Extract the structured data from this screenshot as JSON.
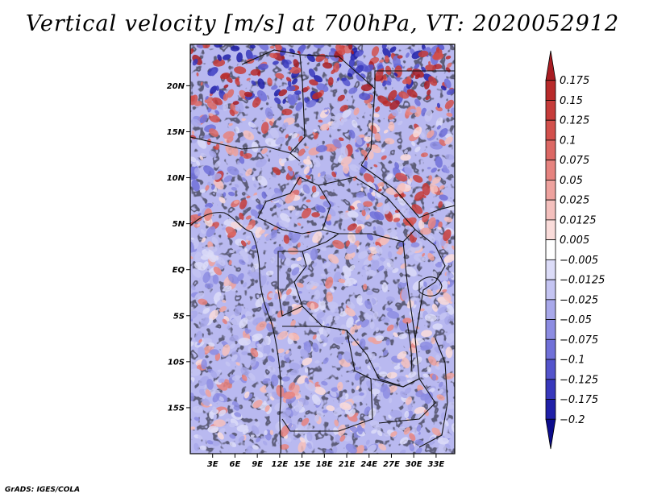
{
  "title": "Vertical velocity [m/s] at 700hPa, VT: 2020052912",
  "credit": "GrADS: IGES/COLA",
  "map": {
    "lon_range": [
      0,
      35.5
    ],
    "lat_range": [
      -20,
      24.5
    ],
    "lat_ticks": [
      {
        "value": 20,
        "label": "20N"
      },
      {
        "value": 15,
        "label": "15N"
      },
      {
        "value": 10,
        "label": "10N"
      },
      {
        "value": 5,
        "label": "5N"
      },
      {
        "value": 0,
        "label": "EQ"
      },
      {
        "value": -5,
        "label": "5S"
      },
      {
        "value": -10,
        "label": "10S"
      },
      {
        "value": -15,
        "label": "15S"
      }
    ],
    "lon_ticks": [
      {
        "value": 3,
        "label": "3E"
      },
      {
        "value": 6,
        "label": "6E"
      },
      {
        "value": 9,
        "label": "9E"
      },
      {
        "value": 12,
        "label": "12E"
      },
      {
        "value": 15,
        "label": "15E"
      },
      {
        "value": 18,
        "label": "18E"
      },
      {
        "value": 21,
        "label": "21E"
      },
      {
        "value": 24,
        "label": "24E"
      },
      {
        "value": 27,
        "label": "27E"
      },
      {
        "value": 30,
        "label": "30E"
      },
      {
        "value": 33,
        "label": "33E"
      }
    ]
  },
  "colorbar": {
    "labels": [
      "0.175",
      "0.15",
      "0.125",
      "0.1",
      "0.075",
      "0.05",
      "0.025",
      "0.0125",
      "0.005",
      "−0.005",
      "−0.0125",
      "−0.025",
      "−0.05",
      "−0.075",
      "−0.1",
      "−0.125",
      "−0.175",
      "−0.2"
    ],
    "colors": [
      "#a81c22",
      "#b82a2a",
      "#c63c3a",
      "#d2504c",
      "#dc6864",
      "#e6837f",
      "#eea29e",
      "#f4c0bd",
      "#fadcda",
      "#ffffff",
      "#dcdcf8",
      "#c4c4f2",
      "#a8a8ea",
      "#8c8ce2",
      "#7070d8",
      "#5454cc",
      "#3838bc",
      "#2020a8",
      "#0c0c8c"
    ]
  }
}
